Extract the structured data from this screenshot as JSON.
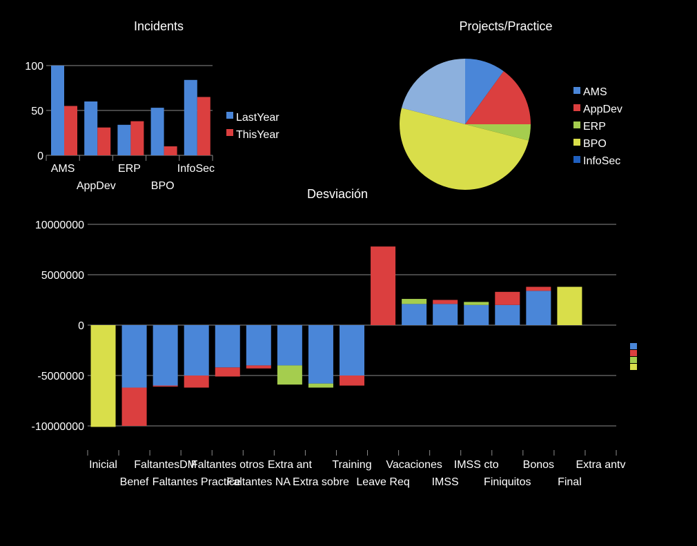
{
  "colors": {
    "blue": "#4a86d8",
    "red": "#db3f3f",
    "green": "#a5cd4e",
    "yellow": "#d9de4a",
    "lightblue": "#8cb0dd",
    "darkblue": "#1f5fbf",
    "axis": "#8c8c8c"
  },
  "chart_data": [
    {
      "type": "bar",
      "title": "Incidents",
      "categories": [
        "AMS",
        "AppDev",
        "ERP",
        "BPO",
        "InfoSec"
      ],
      "series": [
        {
          "name": "LastYear",
          "values": [
            100,
            60,
            34,
            53,
            84
          ]
        },
        {
          "name": "ThisYear",
          "values": [
            55,
            31,
            38,
            10,
            65
          ]
        }
      ],
      "ylim": [
        0,
        100
      ],
      "yticks": [
        "100",
        "50",
        "0"
      ],
      "grid": true,
      "legend": "right"
    },
    {
      "type": "pie",
      "title": "Projects/Practice",
      "slices": [
        {
          "name": "AMS",
          "value": 10
        },
        {
          "name": "AppDev",
          "value": 15
        },
        {
          "name": "ERP",
          "value": 4
        },
        {
          "name": "BPO",
          "value": 50
        },
        {
          "name": "InfoSec",
          "value": 0
        },
        {
          "name": "",
          "value": 21
        }
      ],
      "legend_entries": [
        "AMS",
        "AppDev",
        "ERP",
        "BPO",
        "InfoSec"
      ],
      "legend": "right"
    },
    {
      "type": "bar",
      "title": "Desviación",
      "categories": [
        "Inicial",
        "Benef",
        "FaltantesDM",
        "Faltantes Practice",
        "Faltantes otros",
        "Faltantes NA",
        "Extra ant",
        "Extra sobre",
        "Training",
        "Leave Req",
        "Vacaciones",
        "IMSS",
        "IMSS cto",
        "Finiquitos",
        "Bonos",
        "Final",
        "Extra antv"
      ],
      "stacked": true,
      "stacks": [
        [
          {
            "value": -10100000,
            "color": "yellow"
          }
        ],
        [
          {
            "value": -6200000,
            "color": "blue"
          },
          {
            "value": -3800000,
            "color": "red"
          }
        ],
        [
          {
            "value": -6000000,
            "color": "blue"
          },
          {
            "value": -100000,
            "color": "red"
          }
        ],
        [
          {
            "value": -5000000,
            "color": "blue"
          },
          {
            "value": -1200000,
            "color": "red"
          }
        ],
        [
          {
            "value": -4200000,
            "color": "blue"
          },
          {
            "value": -900000,
            "color": "red"
          }
        ],
        [
          {
            "value": -4000000,
            "color": "blue"
          },
          {
            "value": -300000,
            "color": "red"
          }
        ],
        [
          {
            "value": -4000000,
            "color": "blue"
          },
          {
            "value": -1900000,
            "color": "green"
          }
        ],
        [
          {
            "value": -5800000,
            "color": "blue"
          },
          {
            "value": -400000,
            "color": "green"
          }
        ],
        [
          {
            "value": -5000000,
            "color": "blue"
          },
          {
            "value": -1000000,
            "color": "red"
          }
        ],
        [
          {
            "value": 7800000,
            "color": "red"
          }
        ],
        [
          {
            "value": 2100000,
            "color": "blue"
          },
          {
            "value": 500000,
            "color": "green"
          }
        ],
        [
          {
            "value": 2100000,
            "color": "blue"
          },
          {
            "value": 400000,
            "color": "red"
          }
        ],
        [
          {
            "value": 2000000,
            "color": "blue"
          },
          {
            "value": 300000,
            "color": "green"
          }
        ],
        [
          {
            "value": 2000000,
            "color": "blue"
          },
          {
            "value": 1300000,
            "color": "red"
          }
        ],
        [
          {
            "value": 3400000,
            "color": "blue"
          },
          {
            "value": 400000,
            "color": "red"
          }
        ],
        [
          {
            "value": 3800000,
            "color": "yellow"
          }
        ],
        []
      ],
      "ylim": [
        -12000000,
        10000000
      ],
      "yticks": [
        "10000000",
        "5000000",
        "0",
        "-5000000",
        "-10000000"
      ],
      "grid": true,
      "legend_swatches": [
        "blue",
        "red",
        "green",
        "yellow"
      ]
    }
  ]
}
